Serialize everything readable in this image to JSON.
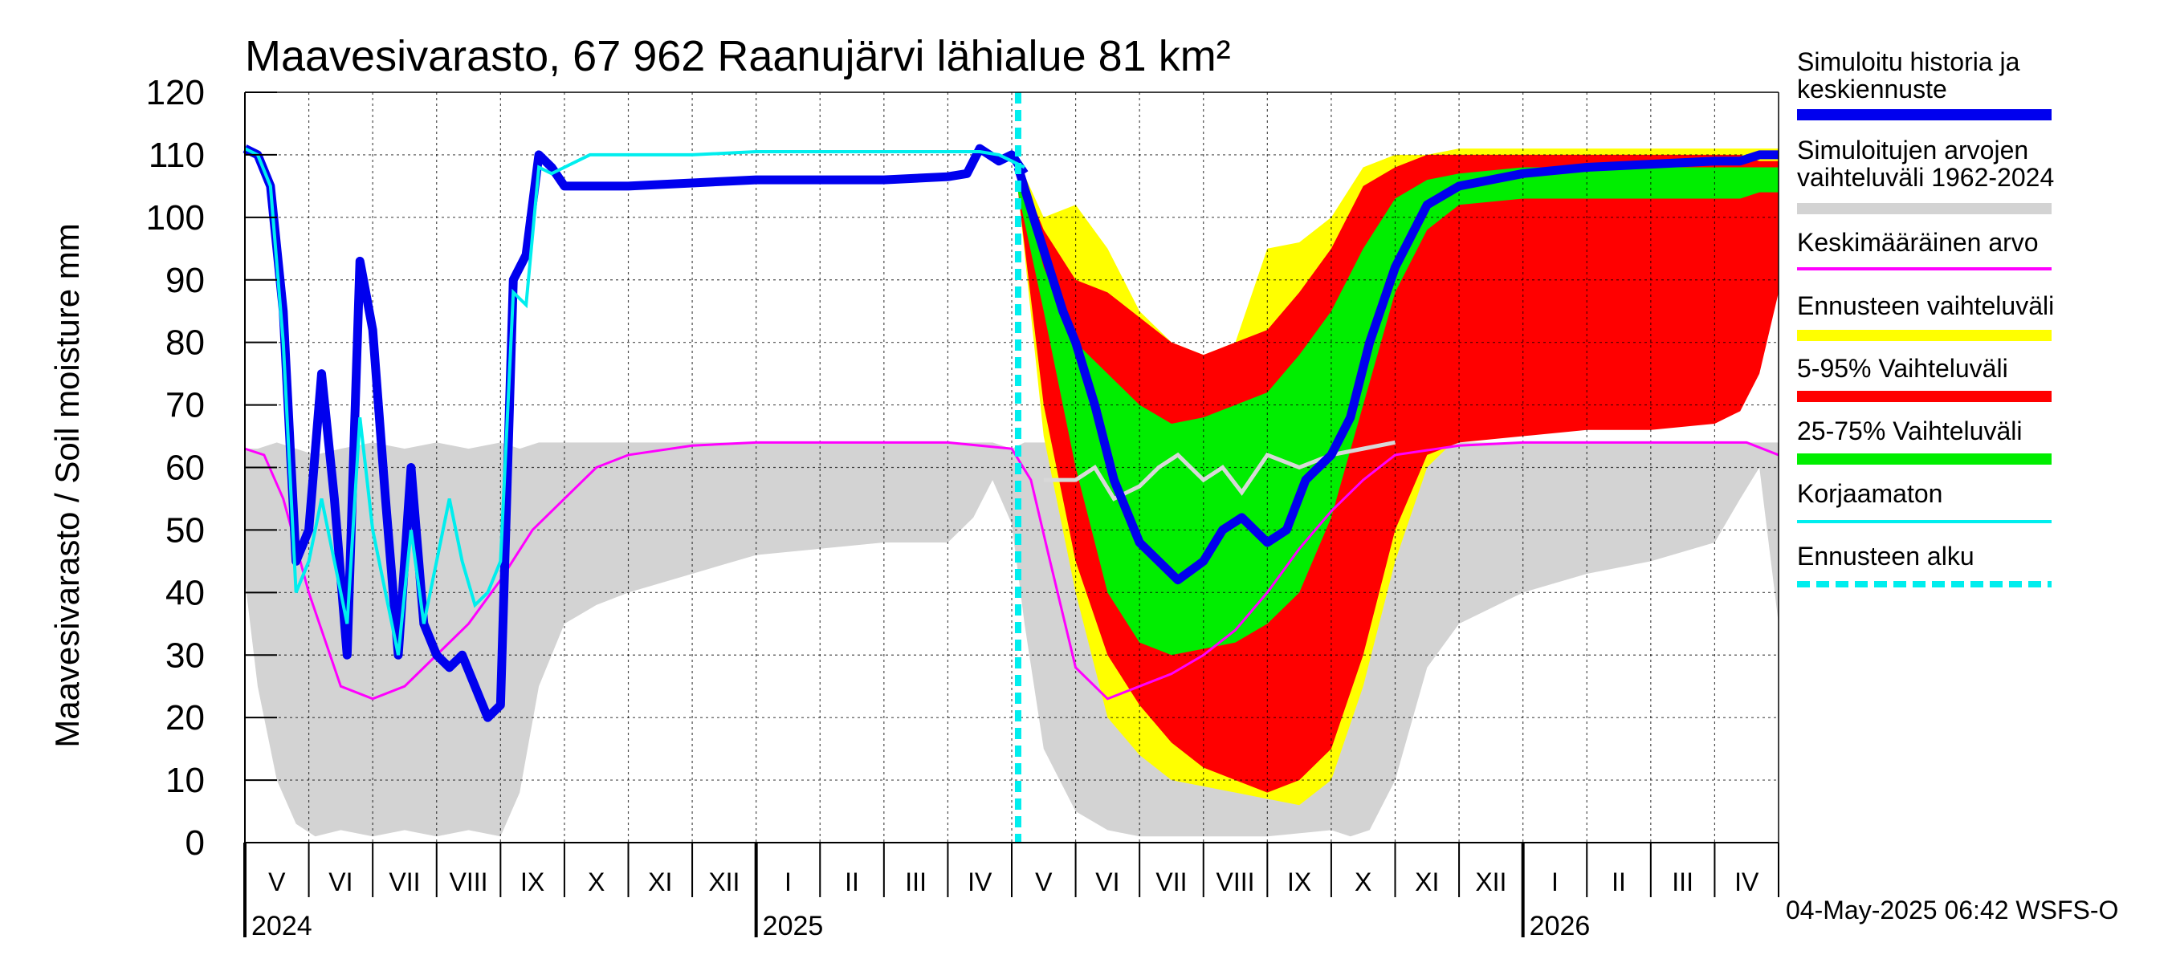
{
  "chart_data": {
    "type": "area",
    "title": "Maavesivarasto, 67 962 Raanujärvi lähialue 81 km²",
    "ylabel": "Maavesivarasto / Soil moisture   mm",
    "ylim": [
      0,
      120
    ],
    "yticks": [
      0,
      10,
      20,
      30,
      40,
      50,
      60,
      70,
      80,
      90,
      100,
      110,
      120
    ],
    "x_range_months": [
      0,
      24
    ],
    "month_labels": [
      "V",
      "VI",
      "VII",
      "VIII",
      "IX",
      "X",
      "XI",
      "XII",
      "I",
      "II",
      "III",
      "IV",
      "V",
      "VI",
      "VII",
      "VIII",
      "IX",
      "X",
      "XI",
      "XII",
      "I",
      "II",
      "III",
      "IV"
    ],
    "year_labels": [
      {
        "label": "2024",
        "month": 0
      },
      {
        "label": "2025",
        "month": 8
      },
      {
        "label": "2026",
        "month": 20
      }
    ],
    "forecast_start_month": 12.1,
    "footer": "04-May-2025 06:42 WSFS-O",
    "legend": [
      {
        "id": "hist",
        "label": "Simuloitu historia ja keskiennuste",
        "lines": [
          "Simuloitu historia ja",
          "keskiennuste"
        ],
        "color": "#0000ee",
        "style": "thick"
      },
      {
        "id": "range",
        "label": "Simuloitujen arvojen vaihteluväli 1962-2024",
        "lines": [
          "Simuloitujen arvojen",
          "vaihteluväli 1962-2024"
        ],
        "color": "#d3d3d3",
        "style": "thick"
      },
      {
        "id": "mean",
        "label": "Keskimääräinen arvo",
        "lines": [
          "Keskimääräinen arvo"
        ],
        "color": "#ff00ff",
        "style": "thin"
      },
      {
        "id": "fc_range",
        "label": "Ennusteen vaihteluväli",
        "lines": [
          "Ennusteen vaihteluväli"
        ],
        "color": "#ffff00",
        "style": "thick"
      },
      {
        "id": "p5_95",
        "label": "5-95% Vaihteluväli",
        "lines": [
          "5-95% Vaihteluväli"
        ],
        "color": "#ff0000",
        "style": "thick"
      },
      {
        "id": "p25_75",
        "label": "25-75% Vaihteluväli",
        "lines": [
          "25-75% Vaihteluväli"
        ],
        "color": "#00ee00",
        "style": "thick"
      },
      {
        "id": "uncorr",
        "label": "Korjaamaton",
        "lines": [
          "Korjaamaton"
        ],
        "color": "#00eeee",
        "style": "thin"
      },
      {
        "id": "fc_start",
        "label": "Ennusteen alku",
        "lines": [
          "Ennusteen alku"
        ],
        "color": "#00eeee",
        "style": "dashed"
      }
    ],
    "series": {
      "range_hist": {
        "x": [
          0,
          0.2,
          0.5,
          0.8,
          1.1,
          1.5,
          2,
          2.5,
          3,
          3.5,
          4,
          4.3,
          4.6,
          5,
          5.5,
          6,
          7,
          8,
          9,
          10,
          11,
          11.4,
          11.7,
          12,
          12.2,
          12.5,
          13,
          13.5,
          14,
          15,
          16,
          17,
          17.3,
          17.6,
          18,
          18.5,
          19,
          20,
          21,
          22,
          23,
          23.4,
          23.7,
          24
        ],
        "upper": [
          63,
          63,
          64,
          63,
          62,
          63,
          64,
          63,
          64,
          63,
          64,
          63,
          64,
          64,
          64,
          64,
          64,
          64,
          64,
          64,
          64,
          64,
          64,
          63,
          64,
          64,
          64,
          64,
          64,
          63,
          64,
          63,
          64,
          64,
          64,
          64,
          64,
          64,
          64,
          64,
          64,
          64,
          64,
          64
        ],
        "lower": [
          42,
          25,
          10,
          3,
          1,
          2,
          1,
          2,
          1,
          2,
          1,
          8,
          25,
          35,
          38,
          40,
          43,
          46,
          47,
          48,
          48,
          52,
          58,
          51,
          35,
          15,
          5,
          2,
          1,
          1,
          1,
          2,
          1,
          2,
          10,
          28,
          35,
          40,
          43,
          45,
          48,
          55,
          60,
          35
        ]
      },
      "fc_outer": {
        "x": [
          12.1,
          12.5,
          13,
          13.5,
          14,
          14.5,
          15,
          15.5,
          16,
          16.5,
          17,
          17.5,
          18,
          18.5,
          19,
          20,
          21,
          22,
          23,
          23.4,
          23.7,
          24
        ],
        "upper": [
          109,
          100,
          102,
          95,
          85,
          80,
          78,
          80,
          95,
          96,
          100,
          108,
          110,
          110,
          111,
          111,
          111,
          111,
          111,
          111,
          111,
          111
        ],
        "lower": [
          104,
          65,
          40,
          20,
          14,
          10,
          9,
          8,
          7,
          6,
          10,
          25,
          45,
          60,
          65,
          66,
          67,
          67,
          68,
          70,
          78,
          90
        ]
      },
      "fc_p5_95": {
        "x": [
          12.1,
          12.5,
          13,
          13.5,
          14,
          14.5,
          15,
          15.5,
          16,
          16.5,
          17,
          17.5,
          18,
          18.5,
          19,
          20,
          21,
          22,
          23,
          23.4,
          23.7,
          24
        ],
        "upper": [
          108,
          98,
          90,
          88,
          84,
          80,
          78,
          80,
          82,
          88,
          95,
          105,
          108,
          110,
          110,
          110,
          110,
          110,
          110,
          110,
          109,
          109
        ],
        "lower": [
          104,
          70,
          45,
          30,
          22,
          16,
          12,
          10,
          8,
          10,
          15,
          30,
          50,
          62,
          64,
          65,
          66,
          66,
          67,
          69,
          75,
          88
        ]
      },
      "fc_p25_75": {
        "x": [
          12.1,
          12.5,
          13,
          13.5,
          14,
          14.5,
          15,
          15.5,
          16,
          16.5,
          17,
          17.5,
          18,
          18.5,
          19,
          20,
          21,
          22,
          23,
          23.4,
          23.7,
          24
        ],
        "upper": [
          107,
          92,
          80,
          75,
          70,
          67,
          68,
          70,
          72,
          78,
          85,
          95,
          103,
          106,
          107,
          108,
          108,
          108,
          108,
          108,
          108,
          108
        ],
        "lower": [
          104,
          85,
          60,
          40,
          32,
          30,
          31,
          32,
          35,
          40,
          52,
          70,
          88,
          98,
          102,
          103,
          103,
          103,
          103,
          103,
          104,
          104
        ]
      },
      "mean": {
        "x": [
          0,
          0.3,
          0.6,
          1,
          1.5,
          2,
          2.5,
          3,
          3.5,
          4,
          4.5,
          5,
          5.5,
          6,
          7,
          8,
          9,
          10,
          11,
          11.5,
          12,
          12.3,
          12.6,
          13,
          13.5,
          14,
          14.5,
          15,
          15.5,
          16,
          16.5,
          17,
          17.5,
          18,
          19,
          20,
          21,
          22,
          23,
          23.5,
          24
        ],
        "y": [
          63,
          62,
          55,
          40,
          25,
          23,
          25,
          30,
          35,
          42,
          50,
          55,
          60,
          62,
          63.5,
          64,
          64,
          64,
          64,
          63.5,
          63,
          58,
          45,
          28,
          23,
          25,
          27,
          30,
          34,
          40,
          47,
          53,
          58,
          62,
          63.5,
          64,
          64,
          64,
          64,
          64,
          62
        ]
      },
      "hist": {
        "x": [
          0,
          0.2,
          0.4,
          0.6,
          0.8,
          1,
          1.2,
          1.4,
          1.6,
          1.8,
          2,
          2.2,
          2.4,
          2.6,
          2.8,
          3,
          3.2,
          3.4,
          3.6,
          3.8,
          4,
          4.2,
          4.4,
          4.6,
          4.8,
          5,
          5.2,
          5.4,
          5.6,
          6,
          7,
          8,
          9,
          10,
          11,
          11.3,
          11.5,
          11.8,
          12,
          12.2
        ],
        "y": [
          111,
          110,
          105,
          85,
          45,
          50,
          75,
          55,
          30,
          93,
          82,
          55,
          30,
          60,
          35,
          30,
          28,
          30,
          25,
          20,
          22,
          90,
          94,
          110,
          108,
          105,
          105,
          105,
          105,
          105,
          105.5,
          106,
          106,
          106,
          106.5,
          107,
          111,
          109,
          110,
          107
        ]
      },
      "uncorr": {
        "x": [
          0,
          0.2,
          0.4,
          0.6,
          0.8,
          1,
          1.2,
          1.4,
          1.6,
          1.8,
          2,
          2.2,
          2.4,
          2.6,
          2.8,
          3,
          3.2,
          3.4,
          3.6,
          3.8,
          4,
          4.2,
          4.4,
          4.6,
          4.8,
          5,
          5.2,
          5.4,
          5.6,
          6,
          7,
          8,
          9,
          10,
          11,
          11.3,
          11.5,
          11.8,
          12,
          12.2
        ],
        "y": [
          111,
          110,
          105,
          80,
          40,
          45,
          55,
          45,
          35,
          68,
          50,
          40,
          30,
          50,
          35,
          45,
          55,
          45,
          38,
          40,
          45,
          88,
          86,
          108,
          107,
          108,
          109,
          110,
          110,
          110,
          110,
          110.5,
          110.5,
          110.5,
          110.5,
          110.5,
          110.5,
          110,
          109,
          108
        ]
      },
      "fc_median": {
        "x": [
          12.1,
          12.4,
          12.8,
          13,
          13.3,
          13.6,
          14,
          14.3,
          14.6,
          15,
          15.3,
          15.6,
          16,
          16.3,
          16.6,
          17,
          17.3,
          17.6,
          18,
          18.5,
          19,
          20,
          21,
          22,
          23,
          23.4,
          23.7,
          24
        ],
        "y": [
          108,
          98,
          85,
          80,
          70,
          58,
          48,
          45,
          42,
          45,
          50,
          52,
          48,
          50,
          58,
          62,
          68,
          80,
          92,
          102,
          105,
          107,
          108,
          108.5,
          109,
          109,
          110,
          110
        ]
      },
      "fc_grey": {
        "x": [
          12.5,
          13,
          13.3,
          13.6,
          14,
          14.3,
          14.6,
          15,
          15.3,
          15.6,
          16,
          16.5,
          17,
          17.5,
          18
        ],
        "y": [
          58,
          58,
          60,
          55,
          57,
          60,
          62,
          58,
          60,
          56,
          62,
          60,
          62,
          63,
          64
        ]
      }
    }
  }
}
